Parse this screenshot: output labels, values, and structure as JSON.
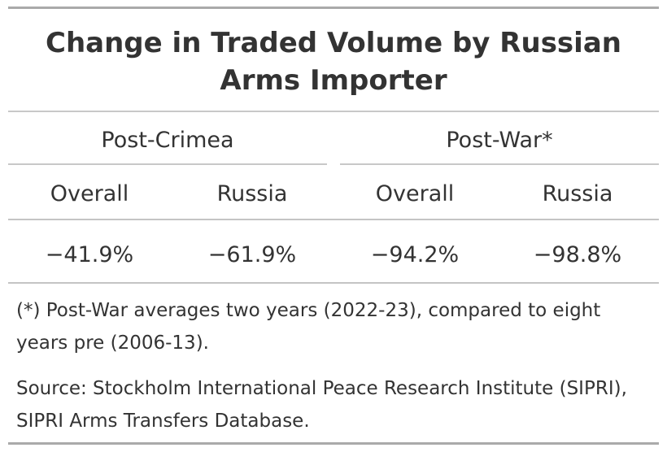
{
  "chart_data": {
    "type": "table",
    "title": "Change in Traded Volume by Russian Arms Importer",
    "spanners": [
      "Post-Crimea",
      "Post-War*"
    ],
    "columns": [
      "Overall",
      "Russia",
      "Overall",
      "Russia"
    ],
    "rows": [
      [
        "−41.9%",
        "−61.9%",
        "−94.2%",
        "−98.8%"
      ]
    ],
    "footnotes": [
      "(*) Post-War averages two years (2022-23), compared to eight years pre (2006-13).",
      "Source: Stockholm International Peace Research Institute (SIPRI), SIPRI Arms Transfers Database."
    ]
  }
}
